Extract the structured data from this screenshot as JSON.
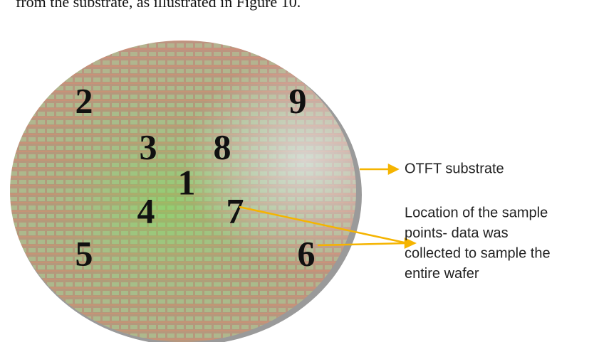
{
  "caption_fragment": "from the substrate, as illustrated in Figure 10.",
  "wafer": {
    "points": [
      "2",
      "9",
      "3",
      "8",
      "1",
      "4",
      "7",
      "5",
      "6"
    ]
  },
  "annotations": {
    "substrate": "OTFT substrate",
    "sample_points": [
      "Location of the sample",
      "points- data was",
      "collected to sample the",
      "entire wafer"
    ]
  }
}
